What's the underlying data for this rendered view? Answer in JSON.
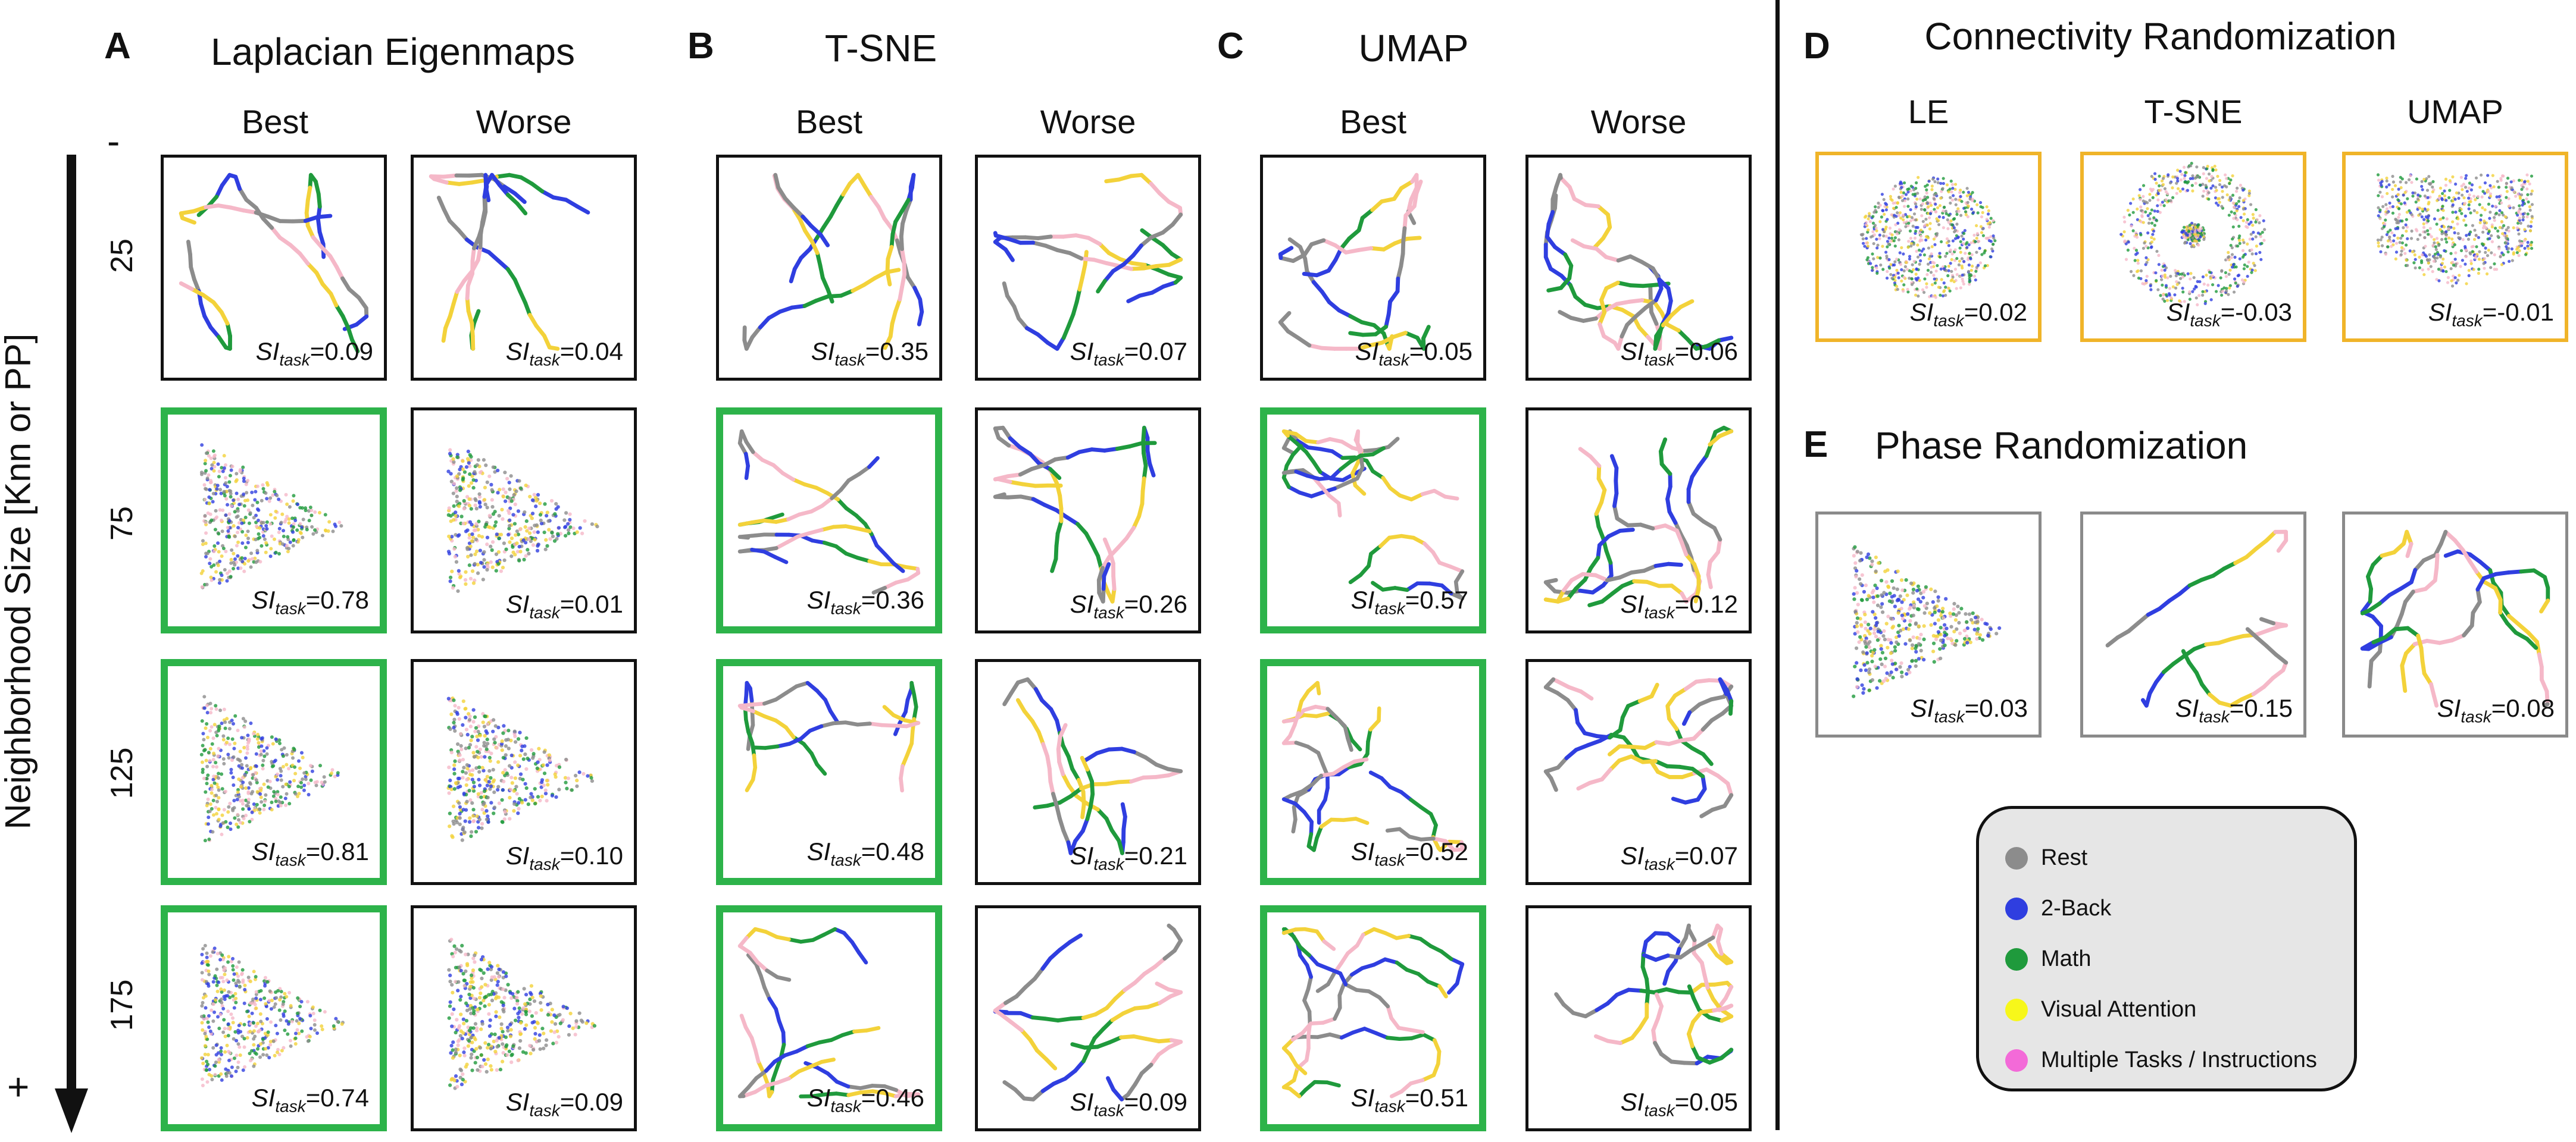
{
  "colors": {
    "rest": "#8c8c8c",
    "two_back": "#2f3ee0",
    "math": "#1f9a3c",
    "visual": "#f3d23a",
    "multiple": "#f5b8c8",
    "best_border": "#2db34a",
    "control_border": "#f0b429"
  },
  "axis": {
    "title": "Neighborhood Size [Knn or PP]",
    "top_sign": "-",
    "bottom_sign": "+"
  },
  "si_symbol": "SI",
  "si_sub": "task",
  "row_labels": [
    "25",
    "75",
    "125",
    "175"
  ],
  "panels": {
    "A": {
      "letter": "A",
      "title": "Laplacian Eigenmaps",
      "col_best": "Best",
      "col_worse": "Worse"
    },
    "B": {
      "letter": "B",
      "title": "T-SNE",
      "col_best": "Best",
      "col_worse": "Worse"
    },
    "C": {
      "letter": "C",
      "title": "UMAP",
      "col_best": "Best",
      "col_worse": "Worse"
    },
    "D": {
      "letter": "D",
      "title": "Connectivity Randomization",
      "labels": [
        "LE",
        "T-SNE",
        "UMAP"
      ]
    },
    "E": {
      "letter": "E",
      "title": "Phase Randomization"
    }
  },
  "values": {
    "A_best": [
      "=0.09",
      "=0.78",
      "=0.81",
      "=0.74"
    ],
    "A_worse": [
      "=0.04",
      "=0.01",
      "=0.10",
      "=0.09"
    ],
    "B_best": [
      "=0.35",
      "=0.36",
      "=0.48",
      "=0.46"
    ],
    "B_worse": [
      "=0.07",
      "=0.26",
      "=0.21",
      "=0.09"
    ],
    "C_best": [
      "=0.05",
      "=0.57",
      "=0.52",
      "=0.51"
    ],
    "C_worse": [
      "=0.06",
      "=0.12",
      "=0.07",
      "=0.05"
    ],
    "D": [
      "=0.02",
      "=-0.03",
      "=-0.01"
    ],
    "E": [
      "=0.03",
      "=0.15",
      "=0.08"
    ]
  },
  "legend": [
    "Rest",
    "2-Back",
    "Math",
    "Visual Attention",
    "Multiple Tasks / Instructions"
  ]
}
